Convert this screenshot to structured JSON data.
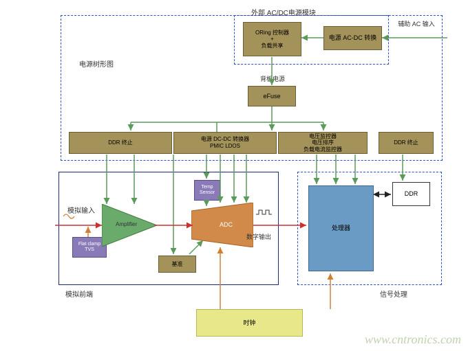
{
  "colors": {
    "dashed_blue": "#2a4fd0",
    "solid_navy": "#1a2a7a",
    "olive": "#a3925a",
    "olive_border": "#6b5e35",
    "orange": "#d18a4a",
    "orange_border": "#a86020",
    "yellow": "#e8e88a",
    "yellow_border": "#b8b850",
    "steel": "#6a9bc4",
    "steel_border": "#3a6a94",
    "violet": "#8a7ab8",
    "violet_border": "#5a4a88",
    "green": "#6aaa6a",
    "green_border": "#3a7a3a",
    "white": "#ffffff",
    "text": "#333333",
    "arrow_green": "#5a9a5a",
    "arrow_red": "#cc3030",
    "arrow_orange": "#d08030",
    "arrow_black": "#222222"
  },
  "labels": {
    "ext_module": "外部 AC/DC电源模块",
    "power_tree": "电源树形图",
    "analog_in": "模拟输入",
    "digital_out": "数字输出",
    "analog_front": "模拟前端",
    "signal_proc": "信号处理",
    "aux_ac": "辅助 AC 输入",
    "backplane": "背板电源",
    "watermark": "www.cntronics.com"
  },
  "nodes": {
    "oring": "ORing 控制器\n+\n负载共享",
    "acdc": "电源 AC-DC 转换",
    "efuse": "eFuse",
    "ddr_stop1": "DDR 终止",
    "dcdc": "电源 DC-DC 转换器\nPMIC LDOS",
    "monitor": "电压监控器\n电压排序\n负载电流监控器",
    "ddr_stop2": "DDR 终止",
    "flat_clamp": "Flat clamp\nTVS",
    "amplifier": "Amplifier",
    "temp": "Temp\nSensor",
    "adc": "ADC",
    "ref": "基准",
    "processor": "处理器",
    "ddr": "DDR",
    "clock": "时钟"
  }
}
